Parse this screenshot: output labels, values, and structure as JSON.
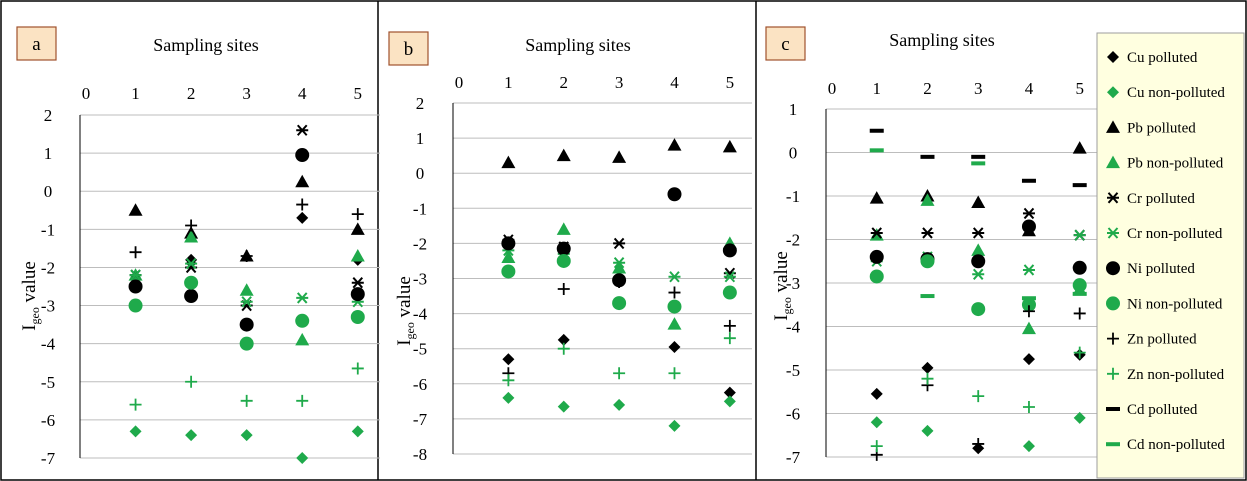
{
  "colors": {
    "polluted": "#000000",
    "non_polluted": "#1faa4b",
    "label_box_fill": "#fbe3c3",
    "label_box_stroke": "#a0522d",
    "legend_fill": "#ffffe0",
    "grid": "#bdbdbd"
  },
  "legend": {
    "placement": "right",
    "items": [
      {
        "label": "Cu polluted",
        "marker": "diamond",
        "color": "polluted"
      },
      {
        "label": "Cu non-polluted",
        "marker": "diamond",
        "color": "non_polluted"
      },
      {
        "label": "Pb polluted",
        "marker": "triangle",
        "color": "polluted"
      },
      {
        "label": "Pb non-polluted",
        "marker": "triangle",
        "color": "non_polluted"
      },
      {
        "label": "Cr polluted",
        "marker": "star",
        "color": "polluted"
      },
      {
        "label": "Cr non-polluted",
        "marker": "star",
        "color": "non_polluted"
      },
      {
        "label": "Ni polluted",
        "marker": "circle",
        "color": "polluted"
      },
      {
        "label": "Ni non-polluted",
        "marker": "circle",
        "color": "non_polluted"
      },
      {
        "label": "Zn polluted",
        "marker": "plus",
        "color": "polluted"
      },
      {
        "label": "Zn non-polluted",
        "marker": "plus",
        "color": "non_polluted"
      },
      {
        "label": "Cd polluted",
        "marker": "dash",
        "color": "polluted"
      },
      {
        "label": "Cd non-polluted",
        "marker": "dash",
        "color": "non_polluted"
      }
    ]
  },
  "chart_data": [
    {
      "type": "scatter",
      "panel": "a",
      "title": "Sampling sites",
      "ylabel_main": "I",
      "ylabel_sub": "geo",
      "ylabel_tail": " value",
      "x_axis_position": "top",
      "xticks": [
        0,
        1,
        2,
        3,
        4,
        5
      ],
      "xlim": [
        0,
        5.4
      ],
      "yticks": [
        2,
        1,
        0,
        -1,
        -2,
        -3,
        -4,
        -5,
        -6,
        -7
      ],
      "ylim": [
        -7.1,
        2
      ],
      "grid": "horizontal",
      "series": [
        {
          "name": "Cu polluted",
          "x": [
            2,
            4,
            5
          ],
          "y": [
            -1.8,
            -0.7,
            -1.8
          ]
        },
        {
          "name": "Cu non-polluted",
          "x": [
            1,
            2,
            3,
            4,
            5
          ],
          "y": [
            -6.3,
            -6.4,
            -6.4,
            -7.0,
            -6.3
          ]
        },
        {
          "name": "Pb polluted",
          "x": [
            1,
            2,
            3,
            4,
            5
          ],
          "y": [
            -0.5,
            -1.1,
            -1.7,
            0.25,
            -1.0
          ]
        },
        {
          "name": "Pb non-polluted",
          "x": [
            1,
            2,
            3,
            4,
            5
          ],
          "y": [
            -2.2,
            -1.2,
            -2.6,
            -3.9,
            -1.7
          ]
        },
        {
          "name": "Cr polluted",
          "x": [
            1,
            2,
            3,
            4,
            5
          ],
          "y": [
            -2.2,
            -2.0,
            -3.0,
            1.6,
            -2.4
          ]
        },
        {
          "name": "Cr non-polluted",
          "x": [
            1,
            2,
            3,
            4,
            5
          ],
          "y": [
            -2.2,
            -1.9,
            -2.9,
            -2.8,
            -2.9
          ]
        },
        {
          "name": "Ni polluted",
          "x": [
            1,
            2,
            3,
            4,
            5
          ],
          "y": [
            -2.5,
            -2.75,
            -3.5,
            0.95,
            -2.7
          ]
        },
        {
          "name": "Ni non-polluted",
          "x": [
            1,
            2,
            3,
            4,
            5
          ],
          "y": [
            -3.0,
            -2.4,
            -4.0,
            -3.4,
            -3.3
          ]
        },
        {
          "name": "Zn polluted",
          "x": [
            1,
            2,
            3,
            4,
            5
          ],
          "y": [
            -1.6,
            -0.9,
            -1.7,
            -0.35,
            -0.6
          ]
        },
        {
          "name": "Zn non-polluted",
          "x": [
            1,
            2,
            3,
            4,
            5
          ],
          "y": [
            -5.6,
            -5.0,
            -5.5,
            -5.5,
            -4.65
          ]
        }
      ]
    },
    {
      "type": "scatter",
      "panel": "b",
      "title": "Sampling sites",
      "ylabel_main": "I",
      "ylabel_sub": "geo",
      "ylabel_tail": " value",
      "x_axis_position": "top",
      "xticks": [
        0,
        1,
        2,
        3,
        4,
        5
      ],
      "xlim": [
        0,
        5.4
      ],
      "yticks": [
        2,
        1,
        0,
        -1,
        -2,
        -3,
        -4,
        -5,
        -6,
        -7,
        -8
      ],
      "ylim": [
        -8.1,
        2
      ],
      "grid": "horizontal",
      "series": [
        {
          "name": "Cu polluted",
          "x": [
            1,
            2,
            3,
            4,
            5
          ],
          "y": [
            -5.3,
            -4.75,
            -3.1,
            -4.95,
            -6.25
          ]
        },
        {
          "name": "Cu non-polluted",
          "x": [
            1,
            2,
            3,
            4,
            5
          ],
          "y": [
            -6.4,
            -6.65,
            -6.6,
            -7.2,
            -6.5
          ]
        },
        {
          "name": "Pb polluted",
          "x": [
            1,
            2,
            3,
            4,
            5
          ],
          "y": [
            0.3,
            0.5,
            0.45,
            0.8,
            0.75
          ]
        },
        {
          "name": "Pb non-polluted",
          "x": [
            1,
            2,
            3,
            4,
            5
          ],
          "y": [
            -2.4,
            -1.6,
            -2.7,
            -4.3,
            -2.0
          ]
        },
        {
          "name": "Cr polluted",
          "x": [
            1,
            2,
            3,
            4,
            5
          ],
          "y": [
            -1.9,
            -2.1,
            -2.0,
            -0.6,
            -2.85
          ]
        },
        {
          "name": "Cr non-polluted",
          "x": [
            1,
            2,
            3,
            4,
            5
          ],
          "y": [
            -2.2,
            -2.3,
            -2.55,
            -2.95,
            -2.95
          ]
        },
        {
          "name": "Ni polluted",
          "x": [
            1,
            2,
            3,
            4,
            5
          ],
          "y": [
            -2.0,
            -2.15,
            -3.05,
            -0.6,
            -2.2
          ]
        },
        {
          "name": "Ni non-polluted",
          "x": [
            1,
            2,
            3,
            4,
            5
          ],
          "y": [
            -2.8,
            -2.5,
            -3.7,
            -3.8,
            -3.4
          ]
        },
        {
          "name": "Zn polluted",
          "x": [
            1,
            2,
            3,
            4,
            5
          ],
          "y": [
            -5.7,
            -3.3,
            -3.1,
            -3.4,
            -4.35
          ]
        },
        {
          "name": "Zn non-polluted",
          "x": [
            1,
            2,
            3,
            4,
            5
          ],
          "y": [
            -5.9,
            -5.0,
            -5.7,
            -5.7,
            -4.7
          ]
        }
      ]
    },
    {
      "type": "scatter",
      "panel": "c",
      "title": "Sampling sites",
      "ylabel_main": "I",
      "ylabel_sub": "geo",
      "ylabel_tail": " value",
      "x_axis_position": "top",
      "xticks": [
        0,
        1,
        2,
        3,
        4,
        5
      ],
      "xlim": [
        0,
        5.4
      ],
      "yticks": [
        1,
        0,
        -1,
        -2,
        -3,
        -4,
        -5,
        -6,
        -7
      ],
      "ylim": [
        -7.1,
        1
      ],
      "grid": "horizontal",
      "series": [
        {
          "name": "Cu polluted",
          "x": [
            1,
            2,
            3,
            4,
            5
          ],
          "y": [
            -5.55,
            -4.95,
            -6.8,
            -4.75,
            -4.65
          ]
        },
        {
          "name": "Cu non-polluted",
          "x": [
            1,
            2,
            4,
            5
          ],
          "y": [
            -6.2,
            -6.4,
            -6.75,
            -6.1
          ]
        },
        {
          "name": "Pb polluted",
          "x": [
            1,
            2,
            3,
            4,
            5
          ],
          "y": [
            -1.05,
            -1.0,
            -1.15,
            -1.8,
            0.1
          ]
        },
        {
          "name": "Pb non-polluted",
          "x": [
            1,
            2,
            3,
            4,
            5
          ],
          "y": [
            -1.9,
            -1.1,
            -2.25,
            -4.05,
            -3.15
          ]
        },
        {
          "name": "Cr polluted",
          "x": [
            1,
            2,
            3,
            4,
            5
          ],
          "y": [
            -1.85,
            -1.85,
            -1.85,
            -1.4,
            -1.9
          ]
        },
        {
          "name": "Cr non-polluted",
          "x": [
            1,
            2,
            3,
            4,
            5
          ],
          "y": [
            -2.5,
            -2.4,
            -2.8,
            -2.7,
            -1.9
          ]
        },
        {
          "name": "Ni polluted",
          "x": [
            1,
            2,
            3,
            4,
            5
          ],
          "y": [
            -2.4,
            -2.45,
            -2.5,
            -1.7,
            -2.65
          ]
        },
        {
          "name": "Ni non-polluted",
          "x": [
            1,
            2,
            3,
            4,
            5
          ],
          "y": [
            -2.85,
            -2.5,
            -3.6,
            -3.5,
            -3.05
          ]
        },
        {
          "name": "Zn polluted",
          "x": [
            1,
            2,
            3,
            4,
            5
          ],
          "y": [
            -6.95,
            -5.35,
            -6.7,
            -3.65,
            -3.7
          ]
        },
        {
          "name": "Zn non-polluted",
          "x": [
            1,
            2,
            3,
            4,
            5
          ],
          "y": [
            -6.75,
            -5.2,
            -5.6,
            -5.85,
            -4.6
          ]
        },
        {
          "name": "Cd polluted",
          "x": [
            1,
            2,
            3,
            4,
            5
          ],
          "y": [
            0.5,
            -0.1,
            -0.1,
            -0.65,
            -0.75
          ]
        },
        {
          "name": "Cd non-polluted",
          "x": [
            1,
            2,
            3,
            4,
            5
          ],
          "y": [
            0.05,
            -3.3,
            -0.25,
            -3.35,
            -3.25
          ]
        }
      ]
    }
  ]
}
